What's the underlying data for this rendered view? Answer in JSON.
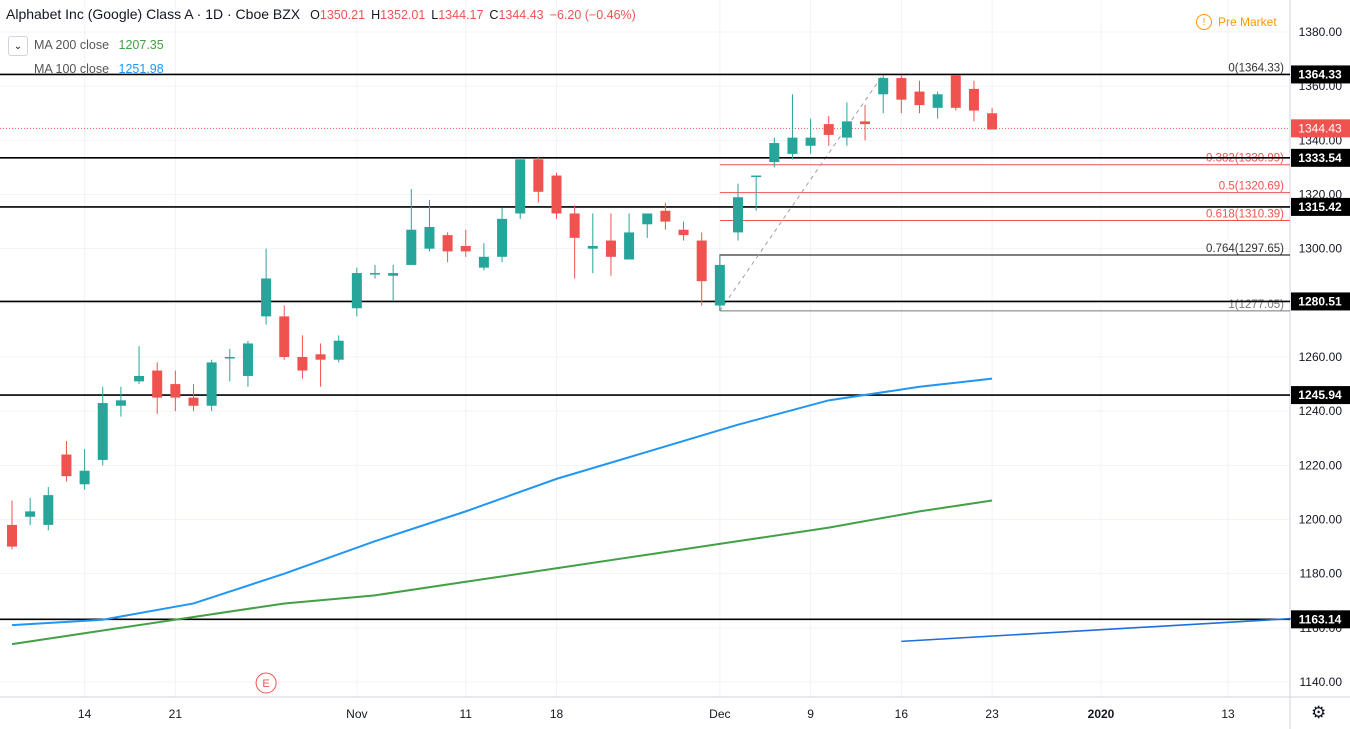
{
  "header": {
    "title": "Alphabet Inc (Google) Class A · 1D · Cboe BZX",
    "ohlc": [
      {
        "k": "O",
        "v": "1350.21"
      },
      {
        "k": "H",
        "v": "1352.01"
      },
      {
        "k": "L",
        "v": "1344.17"
      },
      {
        "k": "C",
        "v": "1344.43"
      }
    ],
    "change": "−6.20 (−0.46%)"
  },
  "legend": [
    {
      "label": "MA 200 close",
      "value": "1207.35",
      "color": "#43a047"
    },
    {
      "label": "MA 100 close",
      "value": "1251.98",
      "color": "#2196f3"
    }
  ],
  "pre_market": {
    "label": "Pre Market",
    "icon": "exclamation-icon"
  },
  "earnings_marker": "E",
  "colors": {
    "up": "#26a69a",
    "down": "#ef5350",
    "ma200": "#43a047",
    "ma100": "#2196f3",
    "trend": "#1e6fd9"
  },
  "chart_data": {
    "type": "candlestick",
    "ylim": [
      1132,
      1392
    ],
    "y_ticks": [
      "1140.00",
      "1160.00",
      "1180.00",
      "1200.00",
      "1220.00",
      "1240.00",
      "1260.00",
      "1280.00",
      "1300.00",
      "1320.00",
      "1340.00",
      "1360.00",
      "1380.00"
    ],
    "x_ticks": [
      {
        "label": "14",
        "i": 4
      },
      {
        "label": "21",
        "i": 9
      },
      {
        "label": "Nov",
        "i": 19
      },
      {
        "label": "11",
        "i": 25
      },
      {
        "label": "18",
        "i": 30
      },
      {
        "label": "Dec",
        "i": 39
      },
      {
        "label": "9",
        "i": 44
      },
      {
        "label": "16",
        "i": 49
      },
      {
        "label": "23",
        "i": 54
      },
      {
        "label": "2020",
        "i": 60
      },
      {
        "label": "13",
        "i": 67
      }
    ],
    "candles": [
      {
        "o": 1198,
        "h": 1207,
        "l": 1189,
        "c": 1190
      },
      {
        "o": 1201,
        "h": 1208,
        "l": 1198,
        "c": 1203
      },
      {
        "o": 1198,
        "h": 1212,
        "l": 1196,
        "c": 1209
      },
      {
        "o": 1224,
        "h": 1229,
        "l": 1214,
        "c": 1216
      },
      {
        "o": 1213,
        "h": 1226,
        "l": 1211,
        "c": 1218
      },
      {
        "o": 1222,
        "h": 1249,
        "l": 1220,
        "c": 1243
      },
      {
        "o": 1242,
        "h": 1249,
        "l": 1238,
        "c": 1244
      },
      {
        "o": 1251,
        "h": 1264,
        "l": 1250,
        "c": 1253
      },
      {
        "o": 1255,
        "h": 1258,
        "l": 1239,
        "c": 1245
      },
      {
        "o": 1250,
        "h": 1255,
        "l": 1240,
        "c": 1245
      },
      {
        "o": 1245,
        "h": 1250,
        "l": 1240,
        "c": 1242
      },
      {
        "o": 1242,
        "h": 1259,
        "l": 1240,
        "c": 1258
      },
      {
        "o": 1260,
        "h": 1263,
        "l": 1251,
        "c": 1260
      },
      {
        "o": 1253,
        "h": 1266,
        "l": 1249,
        "c": 1265
      },
      {
        "o": 1275,
        "h": 1300,
        "l": 1272,
        "c": 1289
      },
      {
        "o": 1275,
        "h": 1279,
        "l": 1259,
        "c": 1260
      },
      {
        "o": 1260,
        "h": 1268,
        "l": 1252,
        "c": 1255
      },
      {
        "o": 1261,
        "h": 1265,
        "l": 1249,
        "c": 1259
      },
      {
        "o": 1259,
        "h": 1268,
        "l": 1258,
        "c": 1266
      },
      {
        "o": 1278,
        "h": 1293,
        "l": 1275,
        "c": 1291
      },
      {
        "o": 1291,
        "h": 1294,
        "l": 1289,
        "c": 1291
      },
      {
        "o": 1290,
        "h": 1294,
        "l": 1281,
        "c": 1291
      },
      {
        "o": 1294,
        "h": 1322,
        "l": 1294,
        "c": 1307
      },
      {
        "o": 1300,
        "h": 1318,
        "l": 1299,
        "c": 1308
      },
      {
        "o": 1305,
        "h": 1306,
        "l": 1295,
        "c": 1299
      },
      {
        "o": 1301,
        "h": 1307,
        "l": 1297,
        "c": 1299
      },
      {
        "o": 1293,
        "h": 1302,
        "l": 1292,
        "c": 1297
      },
      {
        "o": 1297,
        "h": 1315,
        "l": 1295,
        "c": 1311
      },
      {
        "o": 1313,
        "h": 1333,
        "l": 1311,
        "c": 1333
      },
      {
        "o": 1333,
        "h": 1334,
        "l": 1317,
        "c": 1321
      },
      {
        "o": 1327,
        "h": 1328,
        "l": 1311,
        "c": 1313
      },
      {
        "o": 1313,
        "h": 1316,
        "l": 1289,
        "c": 1304
      },
      {
        "o": 1300,
        "h": 1313,
        "l": 1291,
        "c": 1301
      },
      {
        "o": 1303,
        "h": 1313,
        "l": 1290,
        "c": 1297
      },
      {
        "o": 1296,
        "h": 1313,
        "l": 1296,
        "c": 1306
      },
      {
        "o": 1309,
        "h": 1313,
        "l": 1304,
        "c": 1313
      },
      {
        "o": 1314,
        "h": 1317,
        "l": 1307,
        "c": 1310
      },
      {
        "o": 1307,
        "h": 1310,
        "l": 1303,
        "c": 1305
      },
      {
        "o": 1303,
        "h": 1306,
        "l": 1279,
        "c": 1288
      },
      {
        "o": 1279,
        "h": 1298,
        "l": 1277,
        "c": 1294
      },
      {
        "o": 1306,
        "h": 1324,
        "l": 1303,
        "c": 1319
      },
      {
        "o": 1327,
        "h": 1327,
        "l": 1314,
        "c": 1327
      },
      {
        "o": 1332,
        "h": 1341,
        "l": 1330,
        "c": 1339
      },
      {
        "o": 1335,
        "h": 1357,
        "l": 1333,
        "c": 1341
      },
      {
        "o": 1338,
        "h": 1348,
        "l": 1335,
        "c": 1341
      },
      {
        "o": 1346,
        "h": 1349,
        "l": 1338,
        "c": 1342
      },
      {
        "o": 1341,
        "h": 1354,
        "l": 1338,
        "c": 1347
      },
      {
        "o": 1347,
        "h": 1353,
        "l": 1340,
        "c": 1346
      },
      {
        "o": 1357,
        "h": 1364,
        "l": 1350,
        "c": 1363
      },
      {
        "o": 1363,
        "h": 1364,
        "l": 1350,
        "c": 1355
      },
      {
        "o": 1358,
        "h": 1362,
        "l": 1350,
        "c": 1353
      },
      {
        "o": 1352,
        "h": 1358,
        "l": 1348,
        "c": 1357
      },
      {
        "o": 1364,
        "h": 1364,
        "l": 1351,
        "c": 1352
      },
      {
        "o": 1359,
        "h": 1362,
        "l": 1347,
        "c": 1351
      },
      {
        "o": 1350,
        "h": 1352,
        "l": 1344,
        "c": 1344
      }
    ],
    "ma200": [
      [
        0,
        1154
      ],
      [
        5,
        1159
      ],
      [
        10,
        1164
      ],
      [
        15,
        1169
      ],
      [
        20,
        1172
      ],
      [
        25,
        1177
      ],
      [
        30,
        1182
      ],
      [
        35,
        1187
      ],
      [
        40,
        1192
      ],
      [
        45,
        1197
      ],
      [
        50,
        1203
      ],
      [
        54,
        1207
      ]
    ],
    "ma100": [
      [
        0,
        1161
      ],
      [
        5,
        1163
      ],
      [
        10,
        1169
      ],
      [
        15,
        1180
      ],
      [
        20,
        1192
      ],
      [
        25,
        1203
      ],
      [
        30,
        1215
      ],
      [
        35,
        1225
      ],
      [
        40,
        1235
      ],
      [
        45,
        1244
      ],
      [
        50,
        1249
      ],
      [
        54,
        1252
      ]
    ],
    "trend_line": {
      "from": [
        49,
        1155
      ],
      "to": [
        72,
        1164
      ]
    },
    "horizontal_levels": [
      "1364.33",
      "1333.54",
      "1315.42",
      "1280.51",
      "1245.94",
      "1163.14"
    ],
    "last_price": "1344.43",
    "fibonacci": [
      {
        "ratio": "0",
        "label": "0(1364.33)",
        "color": "#000000"
      },
      {
        "ratio": "0.382",
        "label": "0.382(1330.99)",
        "color": "#ef5350"
      },
      {
        "ratio": "0.5",
        "label": "0.5(1320.69)",
        "color": "#ef5350"
      },
      {
        "ratio": "0.618",
        "label": "0.618(1310.39)",
        "color": "#ef5350"
      },
      {
        "ratio": "0.764",
        "label": "0.764(1297.65)",
        "color": "#000000"
      },
      {
        "ratio": "1",
        "label": "1(1277.05)",
        "color": "#777777"
      }
    ],
    "fib_start_index": 39,
    "fib_swing": {
      "from": [
        39,
        1277.05
      ],
      "to": [
        48,
        1364.33
      ]
    }
  }
}
